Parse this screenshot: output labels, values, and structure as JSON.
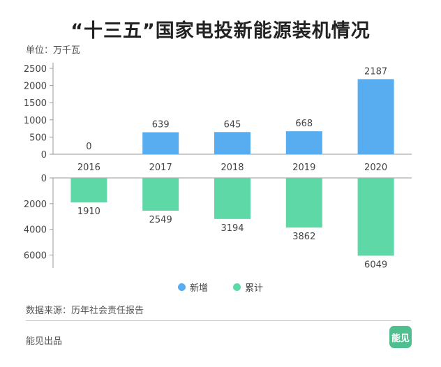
{
  "title": "“十三五”国家电投新能源装机情况",
  "unit": "单位：万千瓦",
  "source": "数据来源：历年社会责任报告",
  "footer": "能见出品",
  "logo_text": "能见",
  "colors": {
    "new": "#58adf0",
    "cumulative": "#5fd8a8",
    "axis": "#999999"
  },
  "chart_data": {
    "type": "bar",
    "categories": [
      "2016",
      "2017",
      "2018",
      "2019",
      "2020"
    ],
    "series": [
      {
        "name": "新增",
        "values": [
          0,
          639,
          645,
          668,
          2187
        ],
        "direction": "up"
      },
      {
        "name": "累计",
        "values": [
          1910,
          2549,
          3194,
          3862,
          6049
        ],
        "direction": "down"
      }
    ],
    "upper_axis": {
      "ylim": [
        0,
        2500
      ],
      "ticks": [
        "0",
        "500",
        "1000",
        "1500",
        "2000",
        "2500"
      ]
    },
    "lower_axis": {
      "ylim": [
        0,
        7000
      ],
      "ticks": [
        "0",
        "2000",
        "4000",
        "6000"
      ]
    },
    "legend": "bottom-center"
  }
}
